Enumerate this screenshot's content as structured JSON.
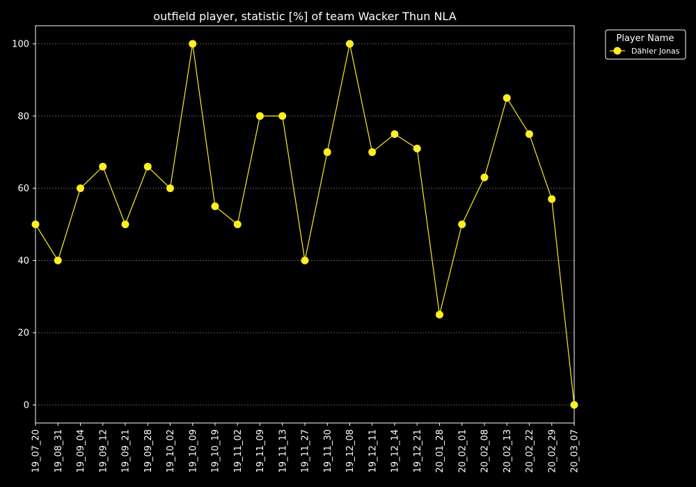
{
  "chart_data": {
    "type": "line",
    "title": "outfield player, statistic [%] of team Wacker Thun NLA",
    "xlabel": "",
    "ylabel": "",
    "x": [
      "19_07_20",
      "19_08_31",
      "19_09_04",
      "19_09_12",
      "19_09_21",
      "19_09_28",
      "19_10_02",
      "19_10_09",
      "19_10_19",
      "19_11_02",
      "19_11_09",
      "19_11_13",
      "19_11_27",
      "19_11_30",
      "19_12_08",
      "19_12_11",
      "19_12_14",
      "19_12_21",
      "20_01_28",
      "20_02_01",
      "20_02_08",
      "20_02_13",
      "20_02_22",
      "20_02_29",
      "20_03_07"
    ],
    "series": [
      {
        "name": "Dähler Jonas",
        "values": [
          50,
          40,
          60,
          66,
          50,
          66,
          60,
          100,
          55,
          50,
          80,
          80,
          40,
          70,
          100,
          70,
          75,
          71,
          25,
          50,
          63,
          85,
          75,
          57,
          0
        ],
        "color": "#ffee22"
      }
    ],
    "yticks": [
      0,
      20,
      40,
      60,
      80,
      100
    ],
    "ylim": [
      -5,
      105
    ],
    "grid": "horizontal dashed",
    "legend": {
      "title": "Player Name",
      "position": "outside-top-right"
    },
    "colors": {
      "background": "#000000",
      "axes": "#ffffff",
      "grid": "#888888",
      "line": "#ffee22"
    }
  }
}
